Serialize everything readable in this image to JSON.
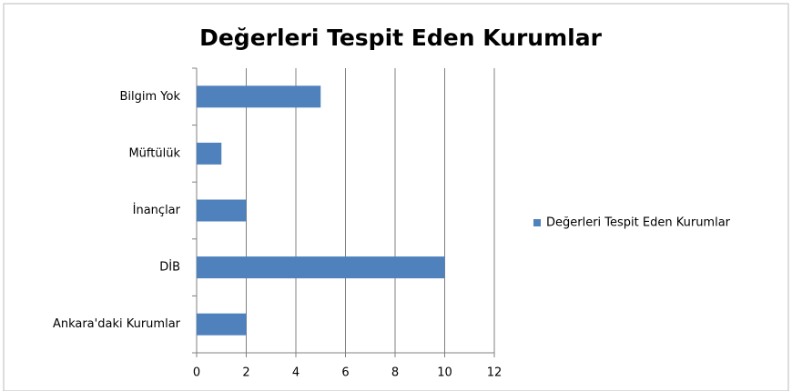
{
  "chart_data": {
    "type": "bar",
    "orientation": "horizontal",
    "title": "Değerleri Tespit Eden Kurumlar",
    "categories": [
      "Bilgim Yok",
      "Müftülük",
      "İnançlar",
      "DİB",
      "Ankara'daki Kurumlar"
    ],
    "series": [
      {
        "name": "Değerleri Tespit Eden Kurumlar",
        "color": "#4f81bd",
        "values": [
          5,
          1,
          2,
          10,
          2
        ]
      }
    ],
    "xlim": [
      0,
      12
    ],
    "xticks": [
      0,
      2,
      4,
      6,
      8,
      10,
      12
    ],
    "grid": true,
    "legend": "right"
  }
}
